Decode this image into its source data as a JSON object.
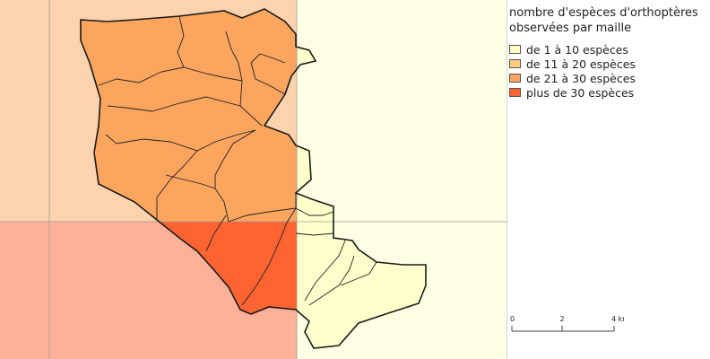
{
  "map": {
    "cells": [
      {
        "class": "21-30"
      },
      {
        "class": "21-30"
      },
      {
        "class": "1-10"
      },
      {
        "class": "plus-30"
      },
      {
        "class": "plus-30"
      },
      {
        "class": "1-10"
      }
    ]
  },
  "legend": {
    "title_line1": "nombre d'espèces d'orthoptères",
    "title_line2": "observées par maille",
    "items": [
      {
        "key": "1-10",
        "label": "de 1 à 10 espèces",
        "color": "#ffffcc"
      },
      {
        "key": "11-20",
        "label": "de 11 à 20 espèces",
        "color": "#fecc7f"
      },
      {
        "key": "21-30",
        "label": "de 21 à 30 espèces",
        "color": "#fba55e"
      },
      {
        "key": "plus-30",
        "label": "plus de 30 espèces",
        "color": "#fe6432"
      }
    ]
  },
  "scale": {
    "ticks": [
      "0",
      "2",
      "4 km"
    ]
  }
}
